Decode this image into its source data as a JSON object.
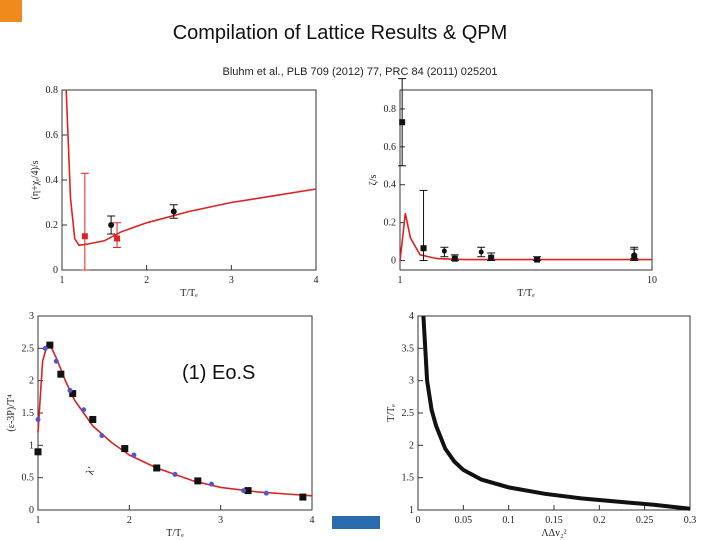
{
  "title": "Compilation of Lattice Results & QPM",
  "citation": "Bluhm et al., PLB 709 (2012) 77, PRC 84 (2011) 025201",
  "label": "(1) Eo.S",
  "colors": {
    "accent": "#f08a1c",
    "curve": "#dd2222",
    "lattice": "#111111",
    "qpm_points": "#5555cc",
    "bar": "#2a6bb0"
  },
  "chart_data": [
    {
      "type": "line",
      "id": "eta-s",
      "xlabel": "T/Tₑ",
      "ylabel": "(η+χₑ/4)/s",
      "xlim": [
        1,
        4
      ],
      "ylim": [
        0,
        0.8
      ],
      "xticks": [
        "1",
        "2",
        "3",
        "4"
      ],
      "yticks": [
        "0",
        "0.2",
        "0.4",
        "0.6",
        "0.8"
      ],
      "curve": {
        "x": [
          1.05,
          1.1,
          1.15,
          1.2,
          1.3,
          1.5,
          1.7,
          2.0,
          2.5,
          3.0,
          3.5,
          4.0
        ],
        "y": [
          0.8,
          0.32,
          0.14,
          0.11,
          0.115,
          0.13,
          0.17,
          0.21,
          0.26,
          0.3,
          0.33,
          0.36
        ]
      },
      "lattice_red": [
        {
          "x": 1.27,
          "y": 0.15,
          "lo": 0.0,
          "hi": 0.43
        },
        {
          "x": 1.65,
          "y": 0.14,
          "lo": 0.1,
          "hi": 0.21
        }
      ],
      "lattice_black": [
        {
          "x": 1.58,
          "y": 0.2,
          "lo": 0.16,
          "hi": 0.24
        },
        {
          "x": 2.32,
          "y": 0.26,
          "lo": 0.23,
          "hi": 0.29
        }
      ]
    },
    {
      "type": "line",
      "id": "zeta-s",
      "xlabel": "T/Tₑ",
      "ylabel": "ζ/s",
      "xlim": [
        1,
        10
      ],
      "ylim": [
        -0.05,
        0.9
      ],
      "xticks": [
        "1",
        "10"
      ],
      "yticks": [
        "0",
        "0.2",
        "0.4",
        "0.6",
        "0.8"
      ],
      "curve": {
        "x": [
          1.0,
          1.02,
          1.05,
          1.1,
          1.2,
          1.4,
          1.8,
          2.5,
          4,
          6,
          8,
          10
        ],
        "y": [
          0.0,
          0.1,
          0.25,
          0.12,
          0.03,
          0.01,
          0.005,
          0.005,
          0.005,
          0.005,
          0.005,
          0.005
        ]
      },
      "lattice_black": [
        {
          "x": 1.02,
          "y": 0.73,
          "lo": 0.5,
          "hi": 0.96
        },
        {
          "x": 1.24,
          "y": 0.065,
          "lo": 0.0,
          "hi": 0.37
        },
        {
          "x": 1.65,
          "y": 0.01,
          "lo": 0.0,
          "hi": 0.03
        },
        {
          "x": 2.3,
          "y": 0.015,
          "lo": 0.0,
          "hi": 0.04
        },
        {
          "x": 3.5,
          "y": 0.005,
          "lo": 0.0,
          "hi": 0.02
        },
        {
          "x": 8.5,
          "y": 0.02,
          "lo": 0.0,
          "hi": 0.06
        }
      ],
      "lattice_dots": [
        {
          "x": 1.5,
          "y": 0.05,
          "lo": 0.02,
          "hi": 0.07
        },
        {
          "x": 2.1,
          "y": 0.045,
          "lo": 0.02,
          "hi": 0.07
        },
        {
          "x": 8.5,
          "y": 0.03,
          "lo": 0.01,
          "hi": 0.07
        }
      ]
    },
    {
      "type": "line",
      "id": "trace-anomaly",
      "xlabel": "T/Tₑ",
      "ylabel": "(ε-3P)/T⁴",
      "inline_label": "λ′",
      "xlim": [
        1,
        4
      ],
      "ylim": [
        0,
        3
      ],
      "xticks": [
        "1",
        "2",
        "3",
        "4"
      ],
      "yticks": [
        "0",
        "0.5",
        "1",
        "1.5",
        "2",
        "2.5",
        "3"
      ],
      "curve": {
        "x": [
          1.0,
          1.05,
          1.1,
          1.15,
          1.2,
          1.3,
          1.4,
          1.6,
          1.8,
          2.0,
          2.3,
          2.7,
          3.0,
          3.4,
          3.8,
          4.0
        ],
        "y": [
          1.2,
          2.3,
          2.55,
          2.5,
          2.35,
          2.0,
          1.7,
          1.3,
          1.05,
          0.85,
          0.65,
          0.45,
          0.35,
          0.28,
          0.24,
          0.22
        ]
      },
      "lattice": [
        {
          "x": 1.0,
          "y": 0.9
        },
        {
          "x": 1.13,
          "y": 2.55
        },
        {
          "x": 1.25,
          "y": 2.1
        },
        {
          "x": 1.38,
          "y": 1.8
        },
        {
          "x": 1.6,
          "y": 1.4
        },
        {
          "x": 1.95,
          "y": 0.95
        },
        {
          "x": 2.3,
          "y": 0.65
        },
        {
          "x": 2.75,
          "y": 0.45
        },
        {
          "x": 3.3,
          "y": 0.3
        },
        {
          "x": 3.9,
          "y": 0.2
        }
      ],
      "qpm": [
        {
          "x": 1.0,
          "y": 1.4
        },
        {
          "x": 1.08,
          "y": 2.5
        },
        {
          "x": 1.2,
          "y": 2.3
        },
        {
          "x": 1.35,
          "y": 1.85
        },
        {
          "x": 1.5,
          "y": 1.55
        },
        {
          "x": 1.7,
          "y": 1.15
        },
        {
          "x": 2.05,
          "y": 0.85
        },
        {
          "x": 2.5,
          "y": 0.55
        },
        {
          "x": 2.9,
          "y": 0.4
        },
        {
          "x": 3.25,
          "y": 0.3
        },
        {
          "x": 3.5,
          "y": 0.26
        }
      ]
    },
    {
      "type": "line",
      "id": "tc-vs-delta",
      "xlabel": "ΛΔv₂²",
      "ylabel": "T/Tₑ",
      "xlim": [
        0,
        0.3
      ],
      "ylim": [
        1,
        4
      ],
      "xticks": [
        "0",
        "0.05",
        "0.1",
        "0.15",
        "0.2",
        "0.25",
        "0.3"
      ],
      "yticks": [
        "1",
        "1.5",
        "2",
        "2.5",
        "3",
        "3.5",
        "4"
      ],
      "curve": {
        "x": [
          0.006,
          0.01,
          0.015,
          0.02,
          0.03,
          0.04,
          0.05,
          0.07,
          0.1,
          0.14,
          0.18,
          0.22,
          0.26,
          0.3
        ],
        "y": [
          4.0,
          3.0,
          2.55,
          2.3,
          1.95,
          1.75,
          1.62,
          1.47,
          1.35,
          1.25,
          1.18,
          1.13,
          1.08,
          1.02
        ]
      }
    }
  ]
}
